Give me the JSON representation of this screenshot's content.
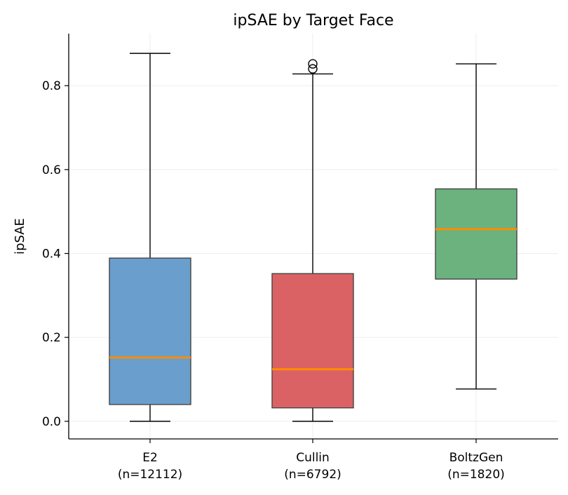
{
  "chart_data": {
    "type": "box",
    "title": "ipSAE by Target Face",
    "xlabel": "",
    "ylabel": "ipSAE",
    "ylim": [
      -0.042,
      0.924
    ],
    "yticks": [
      0.0,
      0.2,
      0.4,
      0.6,
      0.8
    ],
    "ytick_labels": [
      "0.0",
      "0.2",
      "0.4",
      "0.6",
      "0.8"
    ],
    "grid": true,
    "categories": [
      {
        "name": "E2",
        "n_label": "(n=12112)",
        "color": "#6a9fcd",
        "whisker_low": 0.0,
        "q1": 0.04,
        "median": 0.152,
        "q3": 0.389,
        "whisker_high": 0.877,
        "outliers": []
      },
      {
        "name": "Cullin",
        "n_label": "(n=6792)",
        "color": "#db6264",
        "whisker_low": 0.0,
        "q1": 0.032,
        "median": 0.124,
        "q3": 0.352,
        "whisker_high": 0.828,
        "outliers": [
          0.852,
          0.84
        ]
      },
      {
        "name": "BoltzGen",
        "n_label": "(n=1820)",
        "color": "#6bb27f",
        "whisker_low": 0.077,
        "q1": 0.339,
        "median": 0.458,
        "q3": 0.554,
        "whisker_high": 0.852,
        "outliers": []
      }
    ],
    "median_color": "#ff8c00"
  }
}
